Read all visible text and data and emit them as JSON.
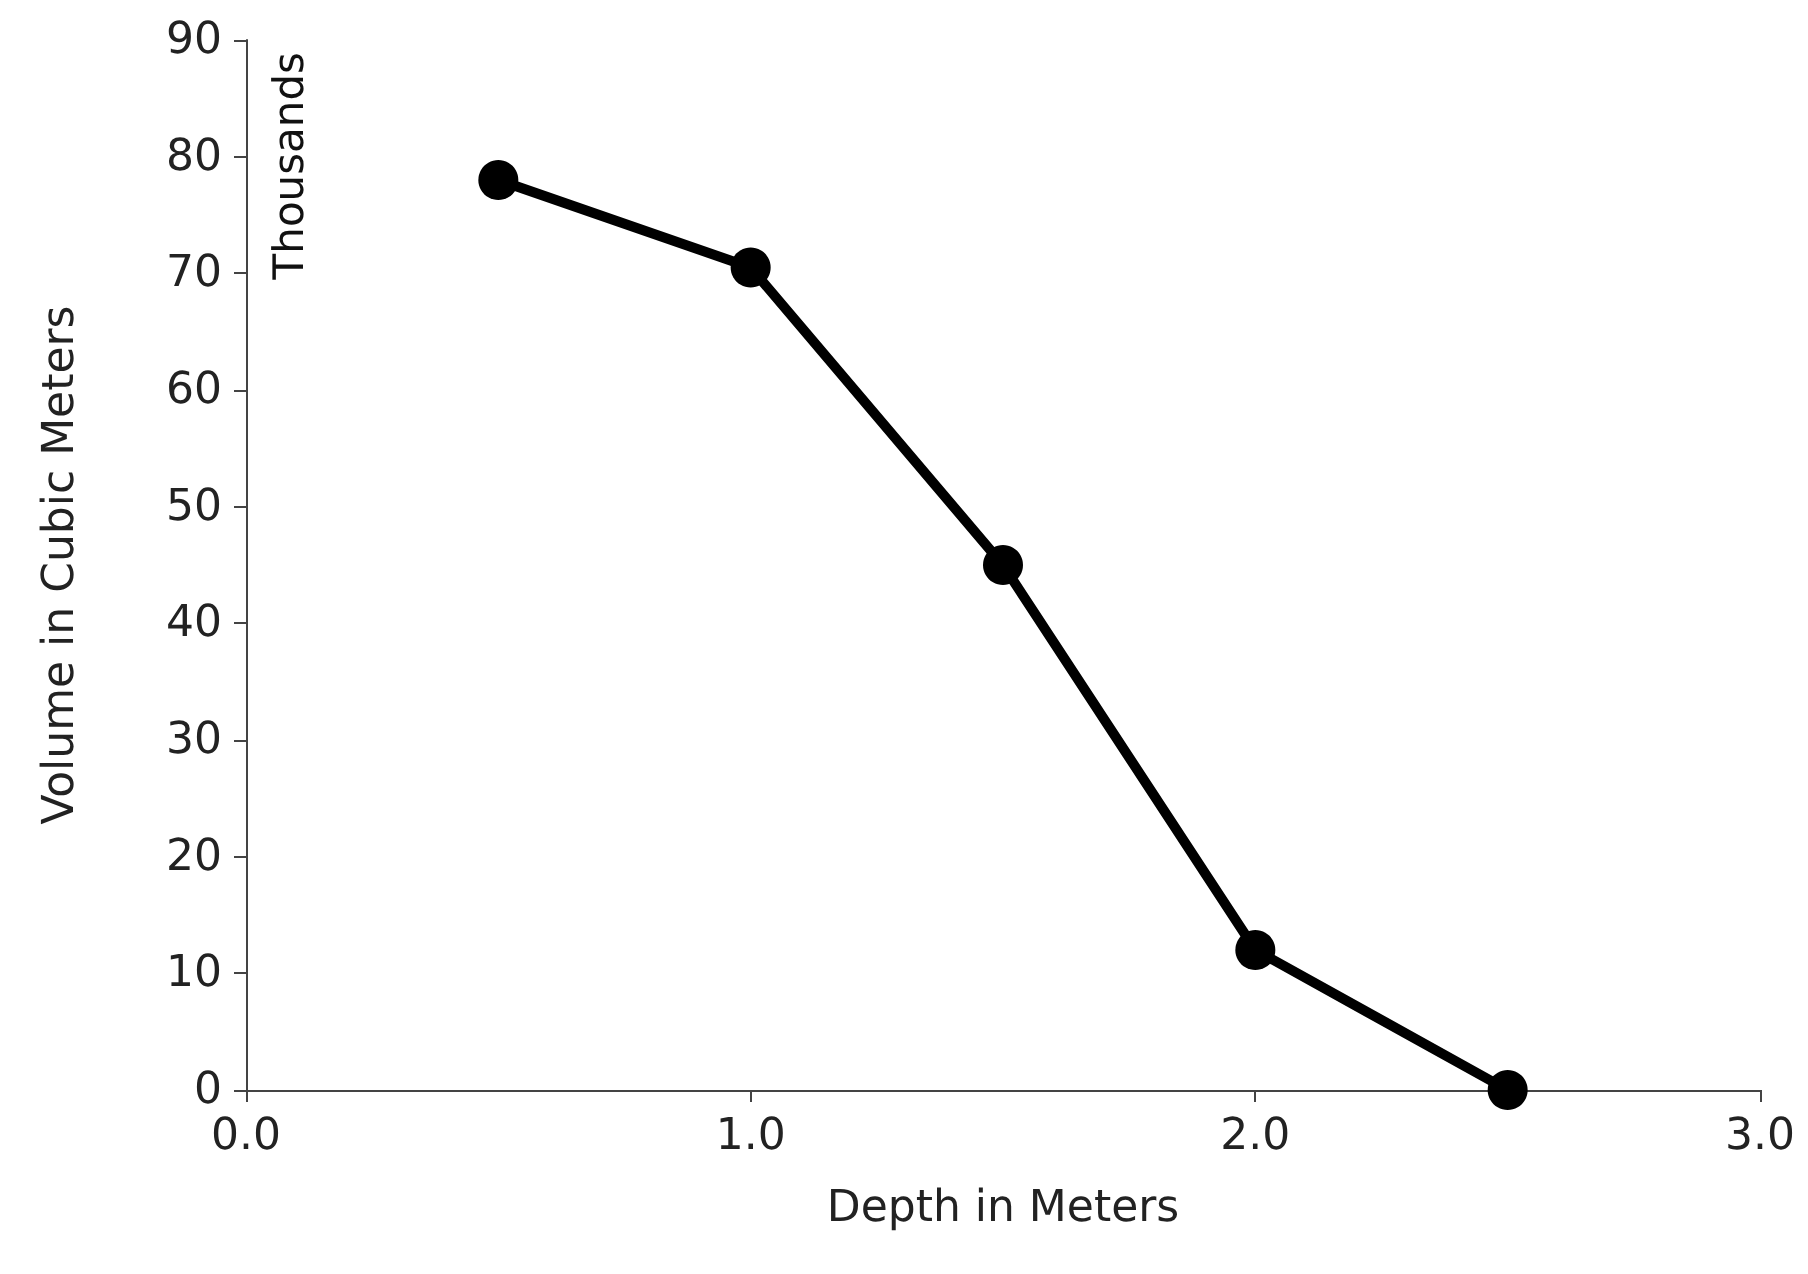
{
  "chart_data": {
    "type": "line",
    "xlabel": "Depth in Meters",
    "ylabel": "Volume in Cubic Meters",
    "annotations": [
      "Thousands"
    ],
    "x": [
      0.5,
      1.0,
      1.5,
      2.0,
      2.5
    ],
    "series": [
      {
        "color": "#000000",
        "values": [
          78,
          70.5,
          45,
          12,
          0
        ]
      }
    ],
    "xlim": [
      0,
      3
    ],
    "xticks": [
      {
        "value": 0,
        "label": "0.0"
      },
      {
        "value": 1,
        "label": "1.0"
      },
      {
        "value": 2,
        "label": "2.0"
      },
      {
        "value": 3,
        "label": "3.0"
      }
    ],
    "ylim": [
      0,
      90
    ],
    "yticks": [
      0,
      10,
      20,
      30,
      40,
      50,
      60,
      70,
      80,
      90
    ],
    "grid": false,
    "marker": "circle",
    "line_style": "solid"
  }
}
